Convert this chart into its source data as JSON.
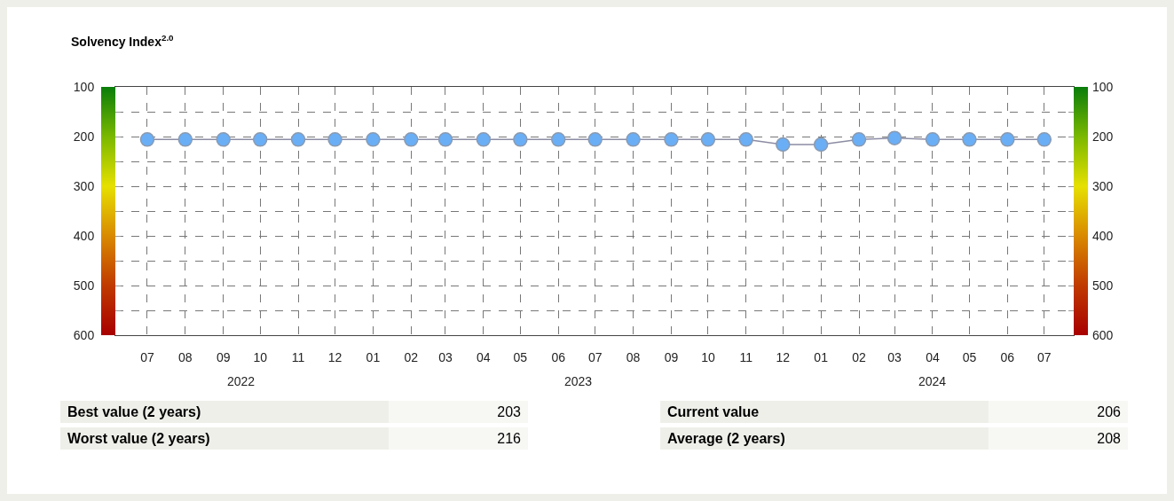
{
  "chart_data": {
    "type": "line",
    "title": "Solvency Index$^{2.0}$",
    "x": [
      "2022-07",
      "2022-08",
      "2022-09",
      "2022-10",
      "2022-11",
      "2022-12",
      "2023-01",
      "2023-02",
      "2023-03",
      "2023-04",
      "2023-05",
      "2023-06",
      "2023-07",
      "2023-08",
      "2023-09",
      "2023-10",
      "2023-11",
      "2023-12",
      "2024-01",
      "2024-02",
      "2024-03",
      "2024-04",
      "2024-05",
      "2024-06",
      "2024-07"
    ],
    "series": [
      {
        "color": "#6aaef5",
        "values": [
          206,
          206,
          206,
          206,
          206,
          206,
          206,
          206,
          206,
          206,
          206,
          206,
          206,
          206,
          206,
          206,
          206,
          216,
          216,
          206,
          203,
          206,
          206,
          206,
          206
        ]
      }
    ],
    "xlim": [
      "2022-06-05",
      "2024-07-25"
    ],
    "xticks": [
      {
        "value": "2022-07",
        "label": "07"
      },
      {
        "value": "2022-08",
        "label": "08"
      },
      {
        "value": "2022-09",
        "label": "09"
      },
      {
        "value": "2022-10",
        "label": "10"
      },
      {
        "value": "2022-11",
        "label": "11"
      },
      {
        "value": "2022-12",
        "label": "12"
      },
      {
        "value": "2023-01",
        "label": "01"
      },
      {
        "value": "2023-02",
        "label": "02"
      },
      {
        "value": "2023-03",
        "label": "03"
      },
      {
        "value": "2023-04",
        "label": "04"
      },
      {
        "value": "2023-05",
        "label": "05"
      },
      {
        "value": "2023-06",
        "label": "06"
      },
      {
        "value": "2023-07",
        "label": "07"
      },
      {
        "value": "2023-08",
        "label": "08"
      },
      {
        "value": "2023-09",
        "label": "09"
      },
      {
        "value": "2023-10",
        "label": "10"
      },
      {
        "value": "2023-11",
        "label": "11"
      },
      {
        "value": "2023-12",
        "label": "12"
      },
      {
        "value": "2024-01",
        "label": "01"
      },
      {
        "value": "2024-02",
        "label": "02"
      },
      {
        "value": "2024-03",
        "label": "03"
      },
      {
        "value": "2024-04",
        "label": "04"
      },
      {
        "value": "2024-05",
        "label": "05"
      },
      {
        "value": "2024-06",
        "label": "06"
      },
      {
        "value": "2024-07",
        "label": "07"
      }
    ],
    "ylim": [
      600,
      100
    ],
    "yticks": [
      100,
      {
        "value": 150,
        "label": null
      },
      200,
      {
        "value": 250,
        "label": null
      },
      300,
      {
        "value": 350,
        "label": null
      },
      400,
      {
        "value": 450,
        "label": null
      },
      500,
      {
        "value": 550,
        "label": null
      },
      600
    ],
    "y2lim": [
      600,
      100
    ],
    "y2ticks": [
      100,
      {
        "value": 150,
        "label": null
      },
      200,
      {
        "value": 250,
        "label": null
      },
      300,
      {
        "value": 350,
        "label": null
      },
      400,
      {
        "value": 450,
        "label": null
      },
      500,
      {
        "value": 550,
        "label": null
      },
      600
    ],
    "grid": true,
    "marker": "circle",
    "line_style": "solid",
    "annotations": [
      "2022",
      "2023",
      "2024",
      "Best value (2 years)",
      "203",
      "Current value",
      "206",
      "Worst value (2 years)",
      "216",
      "Average (2 years)",
      "208"
    ]
  }
}
